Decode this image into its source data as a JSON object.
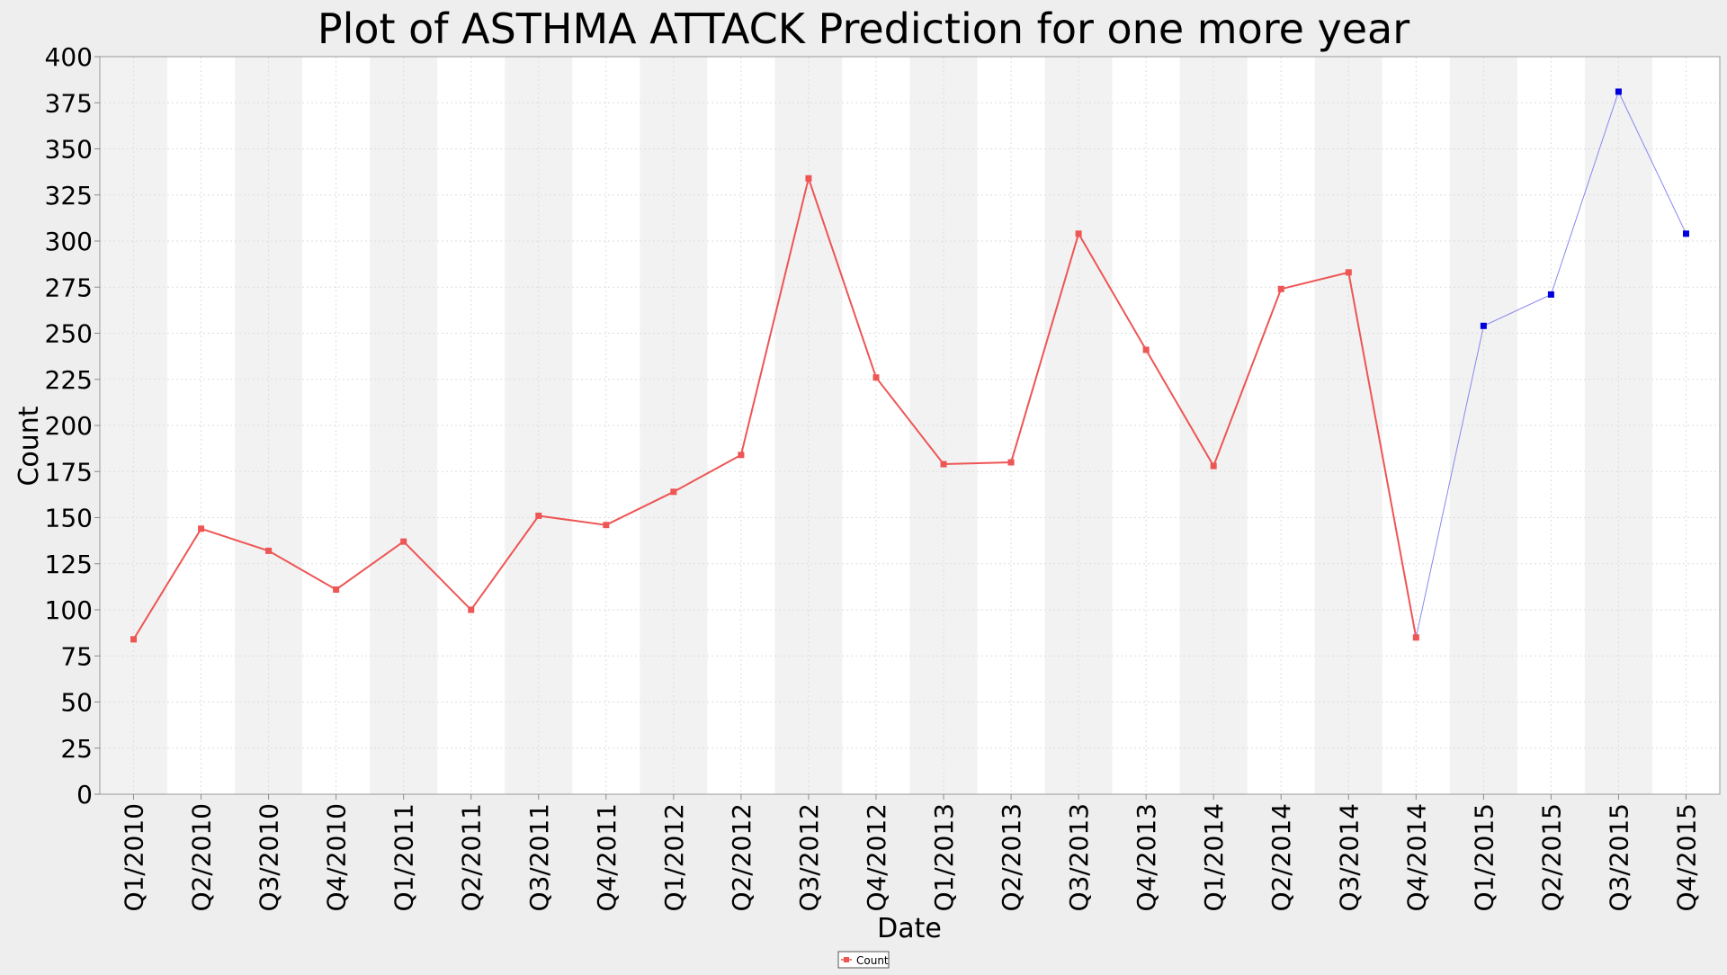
{
  "chart_data": {
    "type": "line",
    "title": "Plot of ASTHMA ATTACK Prediction for one more year",
    "xlabel": "Date",
    "ylabel": "Count",
    "ylim": [
      0,
      400
    ],
    "y_ticks": [
      0,
      25,
      50,
      75,
      100,
      125,
      150,
      175,
      200,
      225,
      250,
      275,
      300,
      325,
      350,
      375,
      400
    ],
    "grid": true,
    "legend": "bottom-center",
    "categories": [
      "Q1/2010",
      "Q2/2010",
      "Q3/2010",
      "Q4/2010",
      "Q1/2011",
      "Q2/2011",
      "Q3/2011",
      "Q4/2011",
      "Q1/2012",
      "Q2/2012",
      "Q3/2012",
      "Q4/2012",
      "Q1/2013",
      "Q2/2013",
      "Q3/2013",
      "Q4/2013",
      "Q1/2014",
      "Q2/2014",
      "Q3/2014",
      "Q4/2014",
      "Q1/2015",
      "Q2/2015",
      "Q3/2015",
      "Q4/2015"
    ],
    "series": [
      {
        "name": "Count",
        "color": "#ee5555",
        "values": [
          84,
          144,
          132,
          111,
          137,
          100,
          151,
          146,
          164,
          184,
          334,
          226,
          179,
          180,
          304,
          241,
          178,
          274,
          283,
          85,
          null,
          null,
          null,
          null
        ]
      },
      {
        "color": "#0000dd",
        "line_color": "#8888ee",
        "values": [
          null,
          null,
          null,
          null,
          null,
          null,
          null,
          null,
          null,
          null,
          null,
          null,
          null,
          null,
          null,
          null,
          null,
          null,
          null,
          85,
          254,
          271,
          381,
          304
        ]
      }
    ],
    "colors": {
      "band_alt": "#f2f2f2",
      "band": "#ffffff",
      "grid": "#dddddd",
      "background": "#eeeeee"
    }
  }
}
